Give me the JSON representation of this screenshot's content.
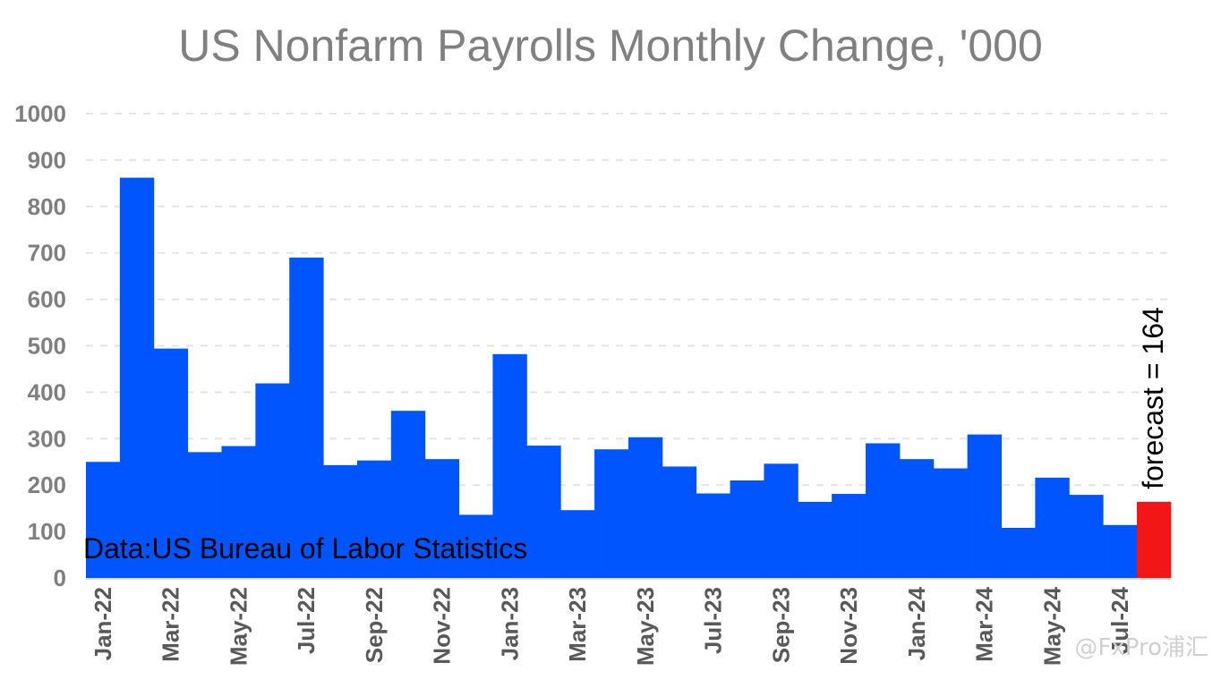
{
  "chart_data": {
    "type": "bar",
    "title": "US Nonfarm Payrolls Monthly Change, '000",
    "xlabel": "",
    "ylabel": "",
    "ylim": [
      0,
      1000
    ],
    "yticks": [
      0,
      100,
      200,
      300,
      400,
      500,
      600,
      700,
      800,
      900,
      1000
    ],
    "grid": "horizontal dashed",
    "categories": [
      "Jan-22",
      "Feb-22",
      "Mar-22",
      "Apr-22",
      "May-22",
      "Jun-22",
      "Jul-22",
      "Aug-22",
      "Sep-22",
      "Oct-22",
      "Nov-22",
      "Dec-22",
      "Jan-23",
      "Feb-23",
      "Mar-23",
      "Apr-23",
      "May-23",
      "Jun-23",
      "Jul-23",
      "Aug-23",
      "Sep-23",
      "Oct-23",
      "Nov-23",
      "Dec-23",
      "Jan-24",
      "Feb-24",
      "Mar-24",
      "Apr-24",
      "May-24",
      "Jun-24",
      "Jul-24",
      "Aug-24"
    ],
    "xtick_labels": [
      "Jan-22",
      "Mar-22",
      "May-22",
      "Jul-22",
      "Sep-22",
      "Nov-22",
      "Jan-23",
      "Mar-23",
      "May-23",
      "Jul-23",
      "Sep-23",
      "Nov-23",
      "Jan-24",
      "Mar-24",
      "May-24",
      "Jul-24"
    ],
    "values": [
      250,
      862,
      494,
      271,
      284,
      419,
      690,
      243,
      253,
      360,
      256,
      136,
      482,
      285,
      146,
      277,
      303,
      240,
      182,
      210,
      246,
      164,
      181,
      290,
      256,
      236,
      309,
      108,
      216,
      179,
      114,
      164
    ],
    "forecast_index": 31,
    "colors": {
      "actual": "#0055ff",
      "forecast": "#f21616"
    },
    "annotations": {
      "source": "Data:US Bureau of Labor Statistics",
      "forecast": "forecast = 164"
    }
  },
  "watermark": "@FxPro浦汇"
}
